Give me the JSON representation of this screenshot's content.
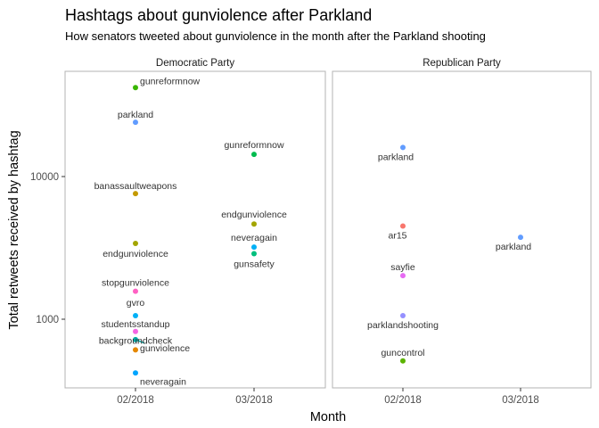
{
  "chart_data": {
    "type": "scatter",
    "title": "Hashtags about gunviolence after Parkland",
    "subtitle": "How senators tweeted about gunviolence in the month after the Parkland shooting",
    "xlabel": "Month",
    "ylabel": "Total retweets received by hashtag",
    "y_scale": "log10",
    "y_ticks": [
      1000,
      10000
    ],
    "y_tick_labels": [
      "1000",
      "10000"
    ],
    "x_ticks": [
      "02/2018",
      "03/2018"
    ],
    "grid": false,
    "legend": "none",
    "facets": [
      {
        "name": "Democratic Party",
        "points": [
          {
            "x": "02/2018",
            "y": 42000,
            "label": "gunreformnow",
            "color": "#39b600"
          },
          {
            "x": "02/2018",
            "y": 24000,
            "label": "parkland",
            "color": "#619cff"
          },
          {
            "x": "02/2018",
            "y": 7600,
            "label": "banassaultweapons",
            "color": "#c49a00"
          },
          {
            "x": "02/2018",
            "y": 3400,
            "label": "endgunviolence",
            "color": "#a3a500"
          },
          {
            "x": "02/2018",
            "y": 1570,
            "label": "stopgunviolence",
            "color": "#ff61c3"
          },
          {
            "x": "02/2018",
            "y": 1060,
            "label": "gvro",
            "color": "#00b0f6"
          },
          {
            "x": "02/2018",
            "y": 820,
            "label": "studentsstandup",
            "color": "#f564e3"
          },
          {
            "x": "02/2018",
            "y": 720,
            "label": "gunviolence",
            "color": "#00a9a4"
          },
          {
            "x": "02/2018",
            "y": 610,
            "label": "backgroundcheck",
            "color": "#e58700"
          },
          {
            "x": "02/2018",
            "y": 420,
            "label": "neveragain",
            "color": "#00a5ff"
          },
          {
            "x": "03/2018",
            "y": 14300,
            "label": "gunreformnow",
            "color": "#00bb4e"
          },
          {
            "x": "03/2018",
            "y": 4650,
            "label": "endgunviolence",
            "color": "#a3a500"
          },
          {
            "x": "03/2018",
            "y": 3200,
            "label": "neveragain",
            "color": "#00b0f6"
          },
          {
            "x": "03/2018",
            "y": 2880,
            "label": "gunsafety",
            "color": "#00bf7d"
          }
        ]
      },
      {
        "name": "Republican Party",
        "points": [
          {
            "x": "02/2018",
            "y": 16000,
            "label": "parkland",
            "color": "#619cff"
          },
          {
            "x": "02/2018",
            "y": 4500,
            "label": "ar15",
            "color": "#f8766d"
          },
          {
            "x": "02/2018",
            "y": 2020,
            "label": "sayfie",
            "color": "#e76bf3"
          },
          {
            "x": "02/2018",
            "y": 1060,
            "label": "parklandshooting",
            "color": "#9590ff"
          },
          {
            "x": "02/2018",
            "y": 510,
            "label": "guncontrol",
            "color": "#5bb300"
          },
          {
            "x": "03/2018",
            "y": 3750,
            "label": "parkland",
            "color": "#619cff"
          }
        ]
      }
    ]
  }
}
